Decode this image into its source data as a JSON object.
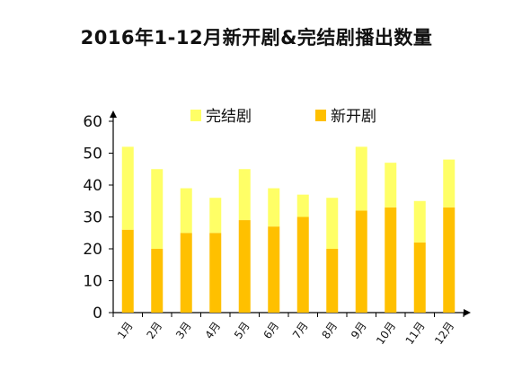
{
  "chart_data": {
    "type": "bar",
    "stacked": true,
    "title": "2016年1-12月新开剧&完结剧播出数量",
    "xlabel": "",
    "ylabel": "",
    "categories": [
      "1月",
      "2月",
      "3月",
      "4月",
      "5月",
      "6月",
      "7月",
      "8月",
      "9月",
      "10月",
      "11月",
      "12月"
    ],
    "series": [
      {
        "name": "新开剧",
        "color": "#FFC000",
        "values": [
          26,
          20,
          25,
          25,
          29,
          27,
          30,
          20,
          32,
          33,
          22,
          33
        ]
      },
      {
        "name": "完结剧",
        "color": "#FFFF66",
        "values": [
          26,
          25,
          14,
          11,
          16,
          12,
          7,
          16,
          20,
          14,
          13,
          15
        ]
      }
    ],
    "legend_order": [
      "完结剧",
      "新开剧"
    ],
    "ylim": [
      0,
      60
    ],
    "yticks": [
      0,
      10,
      20,
      30,
      40,
      50,
      60
    ],
    "legend_position": "top",
    "grid": false,
    "axis_color": "#000000"
  }
}
